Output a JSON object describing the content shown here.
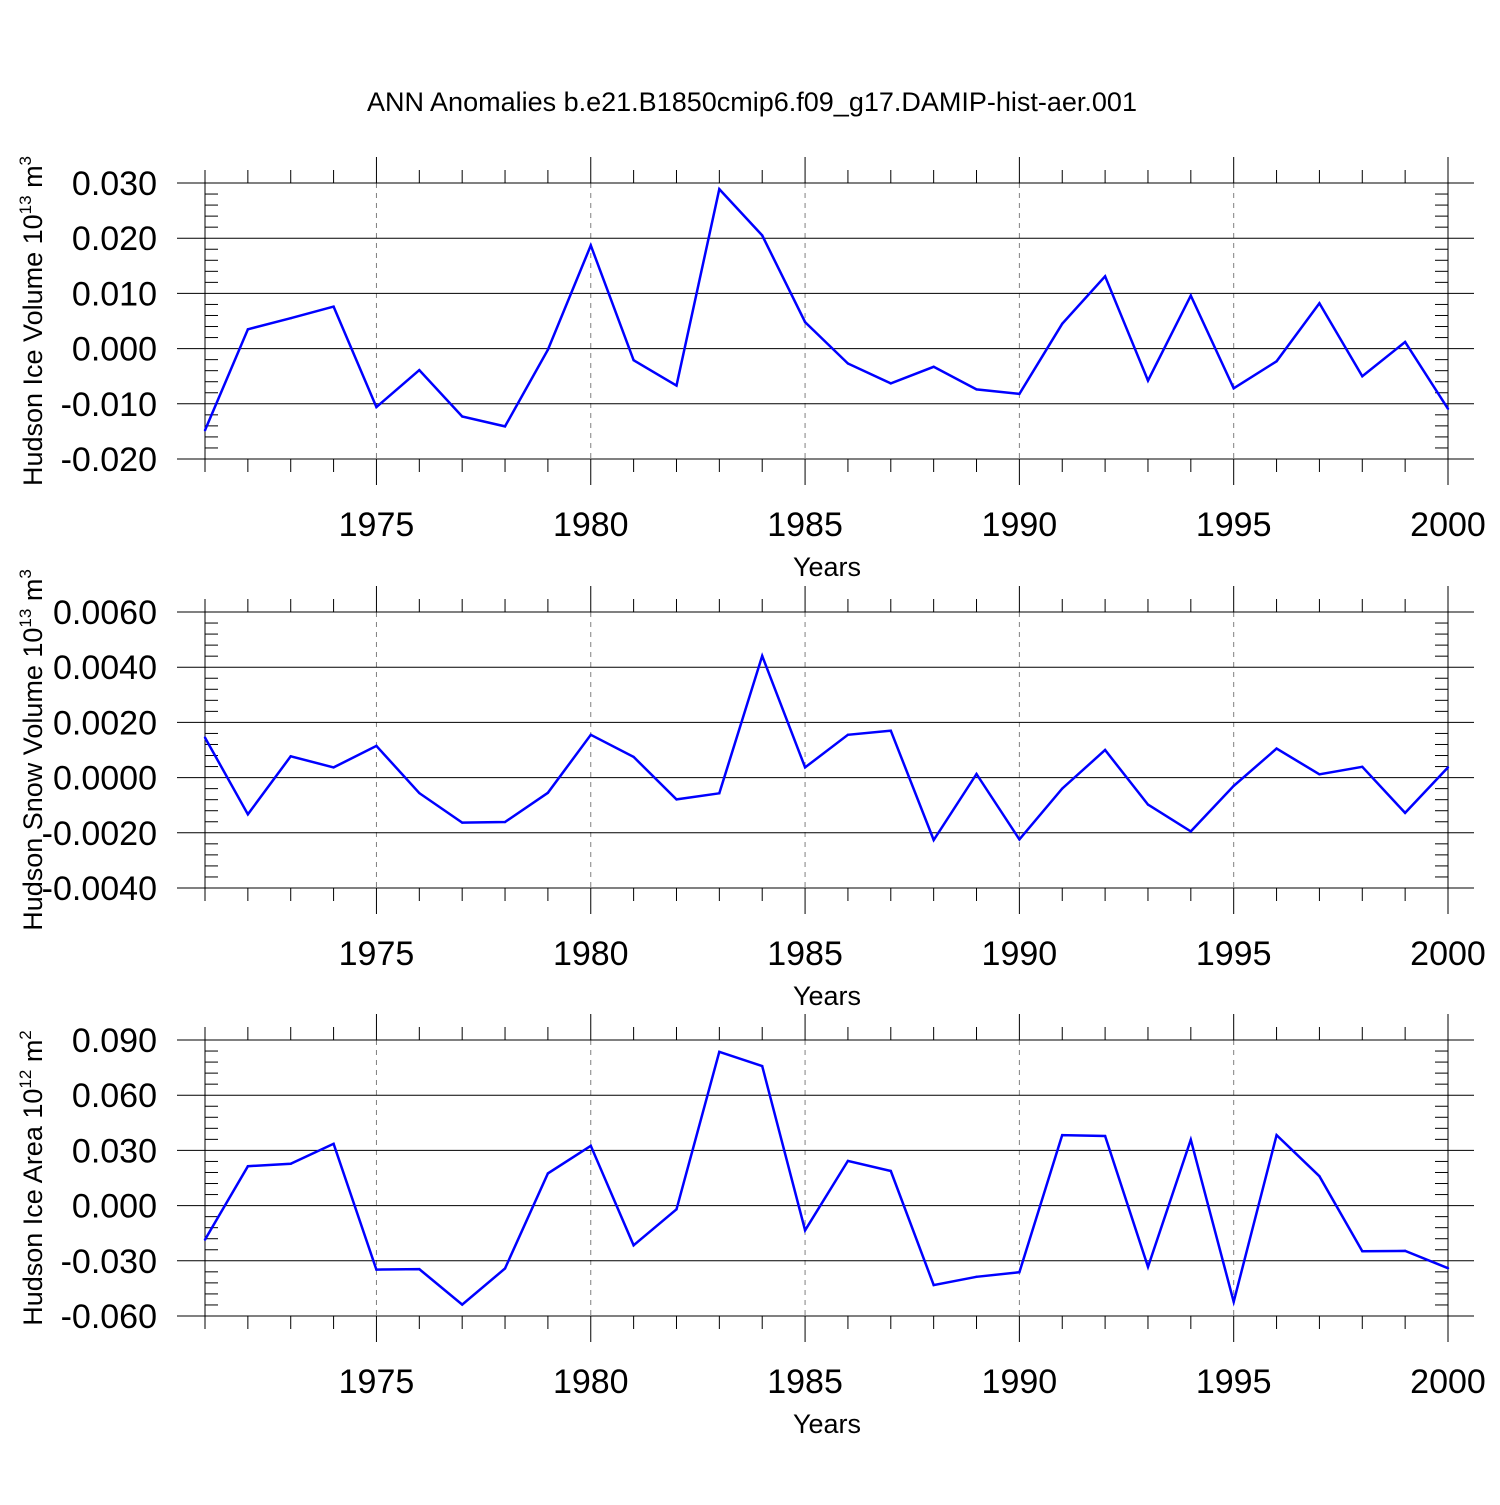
{
  "figure_title": "ANN Anomalies b.e21.B1850cmip6.f09_g17.DAMIP-hist-aer.001",
  "colors": {
    "line": "#0000ff",
    "axes": "#000000",
    "grid": "#808080"
  },
  "chart_data": [
    {
      "type": "line",
      "title": "",
      "xlabel": "Years",
      "ylabel": {
        "text": "Hudson Ice Volume 10",
        "exponent": "13",
        "unit": " m",
        "unit_exponent": "3"
      },
      "xlim": [
        1971,
        2000
      ],
      "ylim": [
        -0.02,
        0.03
      ],
      "x_ticks": [
        1975,
        1980,
        1985,
        1990,
        1995,
        2000
      ],
      "x_tick_labels": [
        "1975",
        "1980",
        "1985",
        "1990",
        "1995",
        "2000"
      ],
      "y_ticks": [
        -0.02,
        -0.01,
        0.0,
        0.01,
        0.02,
        0.03
      ],
      "y_tick_labels": [
        "-0.020",
        "-0.010",
        "0.000",
        "0.010",
        "0.020",
        "0.030"
      ],
      "grid": "vertical dashed at major x ticks",
      "series": [
        {
          "color": "#0000ff",
          "x": [
            1971,
            1972,
            1973,
            1974,
            1975,
            1976,
            1977,
            1978,
            1979,
            1980,
            1981,
            1982,
            1983,
            1984,
            1985,
            1986,
            1987,
            1988,
            1989,
            1990,
            1991,
            1992,
            1993,
            1994,
            1995,
            1996,
            1997,
            1998,
            1999,
            2000
          ],
          "values": [
            -0.0148,
            0.0035,
            0.0055,
            0.0076,
            -0.0106,
            -0.0039,
            -0.0123,
            -0.0141,
            -0.0002,
            0.0187,
            -0.0021,
            -0.0067,
            0.0289,
            0.0205,
            0.0048,
            -0.0027,
            -0.0063,
            -0.0033,
            -0.0074,
            -0.0082,
            0.0045,
            0.0131,
            -0.0058,
            0.0096,
            -0.0072,
            -0.0023,
            0.0082,
            -0.005,
            0.0012,
            -0.0109
          ]
        }
      ]
    },
    {
      "type": "line",
      "title": "",
      "xlabel": "Years",
      "ylabel": {
        "text": "Hudson Snow Volume 10",
        "exponent": "13",
        "unit": " m",
        "unit_exponent": "3"
      },
      "xlim": [
        1971,
        2000
      ],
      "ylim": [
        -0.004,
        0.006
      ],
      "x_ticks": [
        1975,
        1980,
        1985,
        1990,
        1995,
        2000
      ],
      "x_tick_labels": [
        "1975",
        "1980",
        "1985",
        "1990",
        "1995",
        "2000"
      ],
      "y_ticks": [
        -0.004,
        -0.002,
        0.0,
        0.002,
        0.004,
        0.006
      ],
      "y_tick_labels": [
        "-0.0040",
        "-0.0020",
        "0.0000",
        "0.0020",
        "0.0040",
        "0.0060"
      ],
      "grid": "vertical dashed at major x ticks",
      "series": [
        {
          "color": "#0000ff",
          "x": [
            1971,
            1972,
            1973,
            1974,
            1975,
            1976,
            1977,
            1978,
            1979,
            1980,
            1981,
            1982,
            1983,
            1984,
            1985,
            1986,
            1987,
            1988,
            1989,
            1990,
            1991,
            1992,
            1993,
            1994,
            1995,
            1996,
            1997,
            1998,
            1999,
            2000
          ],
          "values": [
            0.00145,
            -0.00133,
            0.00077,
            0.00037,
            0.00115,
            -0.00056,
            -0.00163,
            -0.00161,
            -0.00055,
            0.00155,
            0.00075,
            -0.00079,
            -0.00057,
            0.00441,
            0.00037,
            0.00155,
            0.0017,
            -0.00226,
            0.00013,
            -0.00224,
            -0.0004,
            0.001,
            -0.00098,
            -0.00195,
            -0.0003,
            0.00105,
            0.00012,
            0.00039,
            -0.00128,
            0.00037
          ]
        }
      ]
    },
    {
      "type": "line",
      "title": "",
      "xlabel": "Years",
      "ylabel": {
        "text": "Hudson Ice Area 10",
        "exponent": "12",
        "unit": " m",
        "unit_exponent": "2"
      },
      "xlim": [
        1971,
        2000
      ],
      "ylim": [
        -0.06,
        0.09
      ],
      "x_ticks": [
        1975,
        1980,
        1985,
        1990,
        1995,
        2000
      ],
      "x_tick_labels": [
        "1975",
        "1980",
        "1985",
        "1990",
        "1995",
        "2000"
      ],
      "y_ticks": [
        -0.06,
        -0.03,
        0.0,
        0.03,
        0.06,
        0.09
      ],
      "y_tick_labels": [
        "-0.060",
        "-0.030",
        "0.000",
        "0.030",
        "0.060",
        "0.090"
      ],
      "grid": "vertical dashed at major x ticks",
      "series": [
        {
          "color": "#0000ff",
          "x": [
            1971,
            1972,
            1973,
            1974,
            1975,
            1976,
            1977,
            1978,
            1979,
            1980,
            1981,
            1982,
            1983,
            1984,
            1985,
            1986,
            1987,
            1988,
            1989,
            1990,
            1991,
            1992,
            1993,
            1994,
            1995,
            1996,
            1997,
            1998,
            1999,
            2000
          ],
          "values": [
            -0.0185,
            0.0214,
            0.0227,
            0.0336,
            -0.0348,
            -0.0345,
            -0.0538,
            -0.0342,
            0.0175,
            0.0325,
            -0.0216,
            -0.002,
            0.0836,
            0.0758,
            -0.0134,
            0.0243,
            0.0188,
            -0.0432,
            -0.0387,
            -0.0362,
            0.0383,
            0.0378,
            -0.0333,
            0.0358,
            -0.0523,
            0.0383,
            0.016,
            -0.0248,
            -0.0246,
            -0.034
          ]
        }
      ]
    }
  ]
}
